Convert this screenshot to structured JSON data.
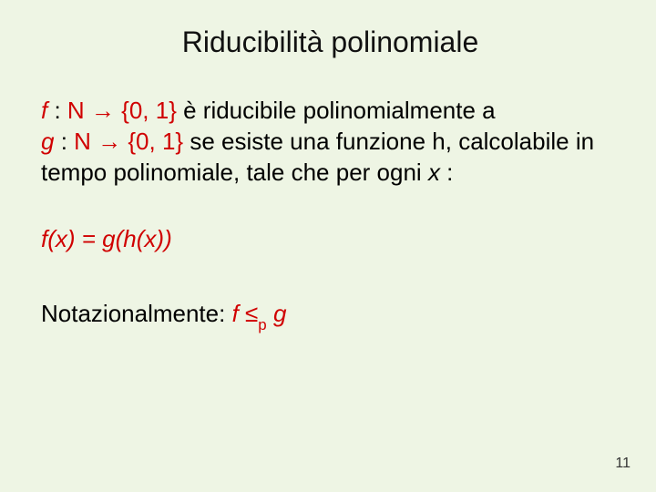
{
  "background_color": "#eef5e4",
  "title": {
    "text": "Riducibilità polinomiale",
    "font_family": "Trebuchet MS",
    "font_size_pt": 32,
    "color": "#111111",
    "align": "center"
  },
  "body": {
    "font_family": "Trebuchet MS",
    "font_size_pt": 26,
    "text_color": "#000000",
    "accent_color": "#d00000"
  },
  "para1": {
    "f_label": "f",
    "colon1": " : ",
    "N1": "N",
    "arrow1": " → ",
    "set1": "{0, 1}",
    "txt1": " è riducibile polinomialmente a ",
    "g_label": "g",
    "colon2": " : ",
    "N2": "N",
    "arrow2": " → ",
    "set2": "{0, 1}",
    "txt2": " se esiste una funzione h, calcolabile in tempo polinomiale, tale che per ogni ",
    "x_label": "x",
    "txt3": " :"
  },
  "para2": {
    "text": "f(x) = g(h(x))"
  },
  "para3": {
    "prefix": "Notazionalmente: ",
    "f": "f",
    "leq": " ≤",
    "sub_p": "p",
    "space": " ",
    "g": "g"
  },
  "page_number": "11"
}
